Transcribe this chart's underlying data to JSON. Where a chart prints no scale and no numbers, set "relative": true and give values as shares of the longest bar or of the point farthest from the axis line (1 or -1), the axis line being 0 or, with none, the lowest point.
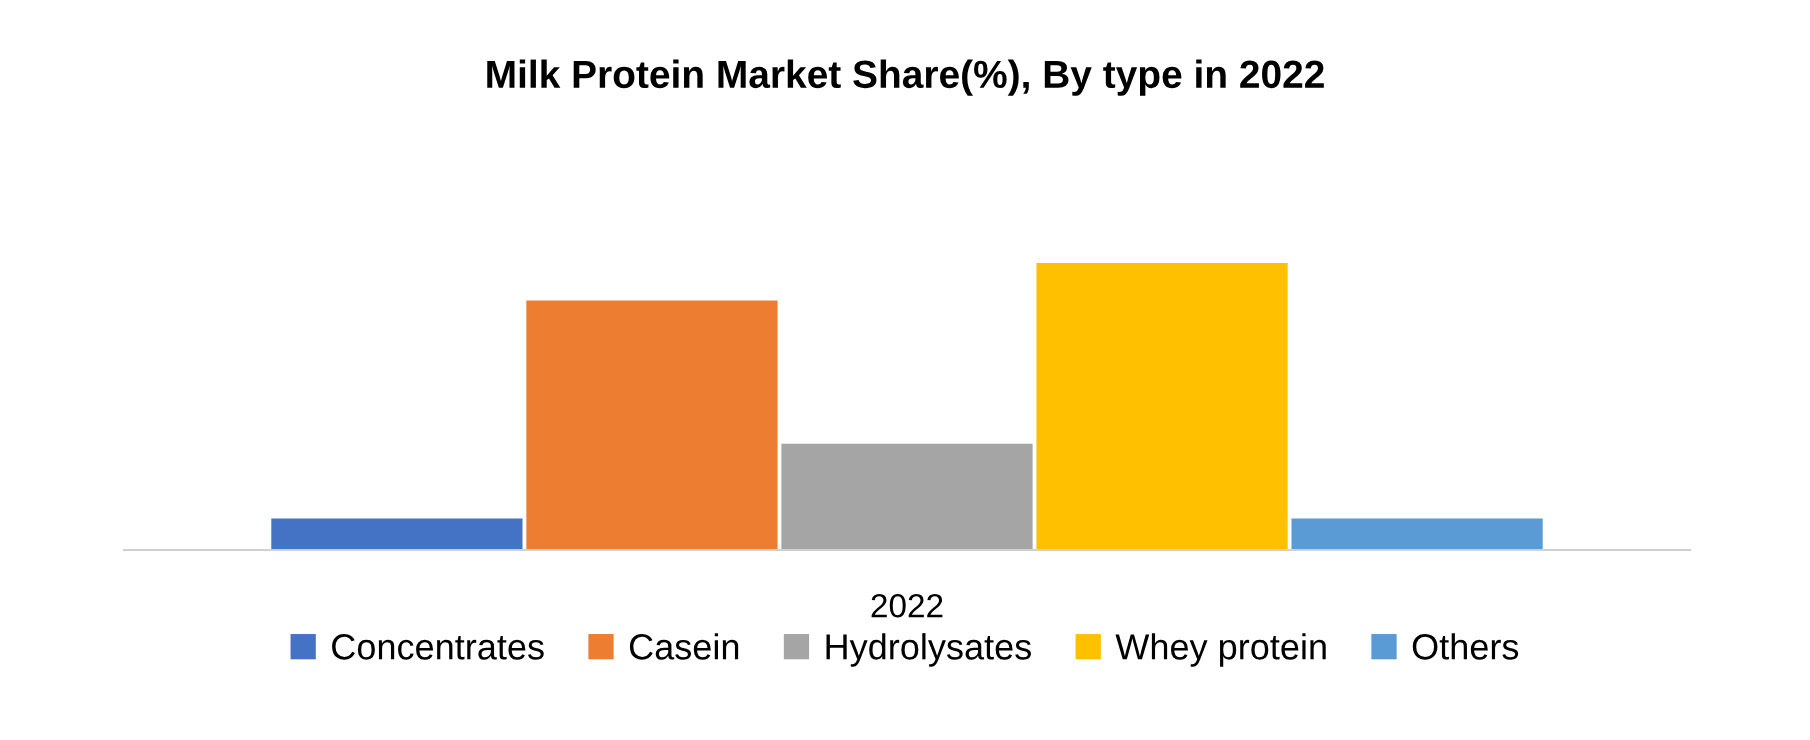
{
  "chart_data": {
    "type": "bar",
    "title": "Milk Protein Market Share(%), By type in 2022",
    "xlabel": "2022",
    "categories": [
      null,
      null,
      null,
      null,
      null
    ],
    "relative": true,
    "stacked": true,
    "series": [
      {
        "name": "Concentrates",
        "color": "#4472c4",
        "values": [
          0.11,
          null,
          null,
          null,
          null
        ]
      },
      {
        "name": "Casein",
        "color": "#ed7d31",
        "values": [
          null,
          0.87,
          null,
          null,
          null
        ]
      },
      {
        "name": "Hydrolysates",
        "color": "#a5a5a5",
        "values": [
          null,
          null,
          0.37,
          null,
          null
        ]
      },
      {
        "name": "Whey protein",
        "color": "#ffc000",
        "values": [
          null,
          null,
          null,
          1,
          null
        ]
      },
      {
        "name": "Others",
        "color": "#5b9bd5",
        "values": [
          null,
          null,
          null,
          null,
          0.11
        ]
      }
    ],
    "legend": "bottom",
    "grid": false
  }
}
